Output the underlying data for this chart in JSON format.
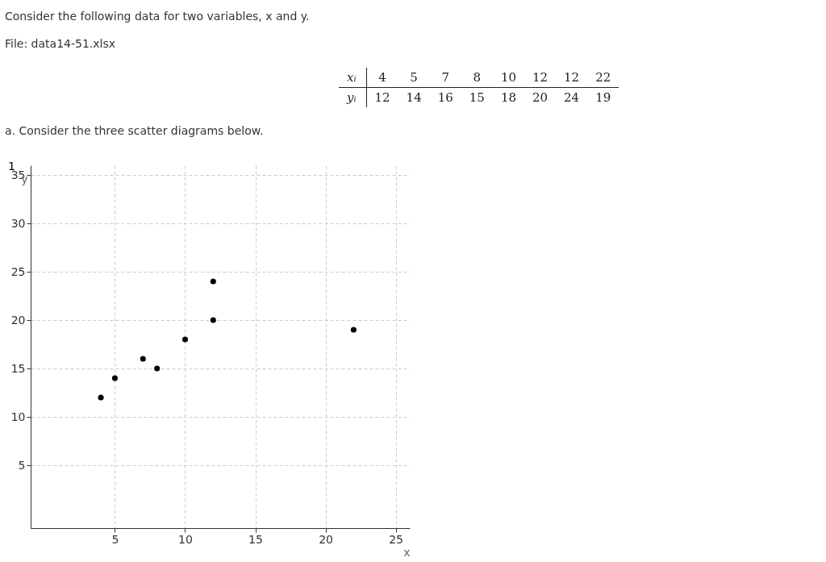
{
  "chart_data": [
    {
      "type": "other",
      "title": "Consider the following data for two variables, x and y.",
      "subtitle": "File: data14-51.xlsx",
      "annotations": [
        "xᵢ",
        "4",
        "5",
        "7",
        "8",
        "10",
        "12",
        "12",
        "22",
        "yᵢ",
        "12",
        "14",
        "16",
        "15",
        "18",
        "20",
        "24",
        "19"
      ]
    },
    {
      "type": "scatter",
      "annotations": [
        "a. Consider the three scatter diagrams below.",
        "1"
      ],
      "xlabel": "x",
      "ylabel": "y",
      "x": [
        4,
        5,
        7,
        8,
        10,
        12,
        12,
        22
      ],
      "values": [
        12,
        14,
        16,
        15,
        18,
        20,
        24,
        19
      ],
      "color": "#000000",
      "marker": "circle",
      "grid": true,
      "xlim": [
        -1,
        26
      ],
      "ylim": [
        -1.5,
        36
      ],
      "xticks": [
        5,
        10,
        15,
        20,
        25
      ],
      "yticks": [
        5,
        10,
        15,
        20,
        25,
        30,
        35
      ]
    }
  ]
}
